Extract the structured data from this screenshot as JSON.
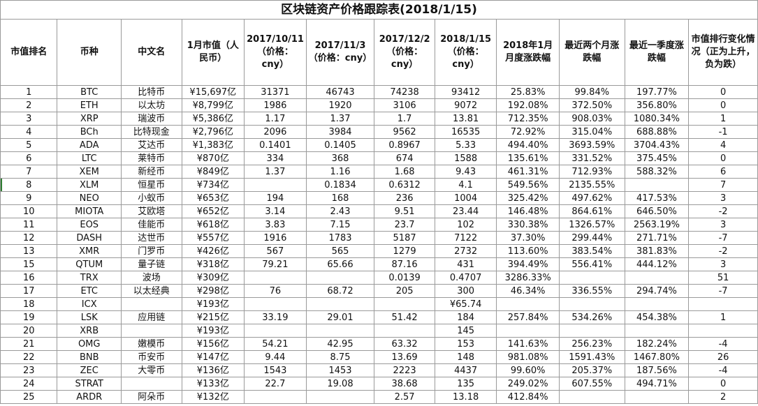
{
  "title": "区块链资产价格跟踪表(2018/1/15)",
  "headers": [
    "市值排名",
    "币种",
    "中文名",
    "1月市值（人民币）",
    "2017/10/11（价格：cny）",
    "2017/11/3（价格：cny）",
    "2017/12/2（价格：cny）",
    "2018/1/15（价格：cny）",
    "2018年1月月度涨跌幅",
    "最近两个月涨跌幅",
    "最近一季度涨跌幅",
    "市值排行变化情况（正为上升，负为跌）"
  ],
  "rows": [
    [
      "1",
      "BTC",
      "比特币",
      "¥15,697亿",
      "31371",
      "46743",
      "74238",
      "93412",
      "25.83%",
      "99.84%",
      "197.77%",
      "0"
    ],
    [
      "2",
      "ETH",
      "以太坊",
      "¥8,799亿",
      "1986",
      "1920",
      "3106",
      "9072",
      "192.08%",
      "372.50%",
      "356.80%",
      "0"
    ],
    [
      "3",
      "XRP",
      "瑞波币",
      "¥5,386亿",
      "1.17",
      "1.37",
      "1.7",
      "13.81",
      "712.35%",
      "908.03%",
      "1080.34%",
      "1"
    ],
    [
      "4",
      "BCh",
      "比特现金",
      "¥2,796亿",
      "2096",
      "3984",
      "9562",
      "16535",
      "72.92%",
      "315.04%",
      "688.88%",
      "-1"
    ],
    [
      "5",
      "ADA",
      "艾达币",
      "¥1,383亿",
      "0.1401",
      "0.1405",
      "0.8967",
      "5.33",
      "494.40%",
      "3693.59%",
      "3704.43%",
      "4"
    ],
    [
      "6",
      "LTC",
      "莱特币",
      "¥870亿",
      "334",
      "368",
      "674",
      "1588",
      "135.61%",
      "331.52%",
      "375.45%",
      "0"
    ],
    [
      "7",
      "XEM",
      "新经币",
      "¥849亿",
      "1.37",
      "1.16",
      "1.68",
      "9.43",
      "461.31%",
      "712.93%",
      "588.32%",
      "6"
    ],
    [
      "8",
      "XLM",
      "恒星币",
      "¥734亿",
      "",
      "0.1834",
      "0.6312",
      "4.1",
      "549.56%",
      "2135.55%",
      "",
      "7"
    ],
    [
      "9",
      "NEO",
      "小蚁币",
      "¥653亿",
      "194",
      "168",
      "236",
      "1004",
      "325.42%",
      "497.62%",
      "417.53%",
      "3"
    ],
    [
      "10",
      "MIOTA",
      "艾欧塔",
      "¥652亿",
      "3.14",
      "2.43",
      "9.51",
      "23.44",
      "146.48%",
      "864.61%",
      "646.50%",
      "-2"
    ],
    [
      "11",
      "EOS",
      "佳能币",
      "¥618亿",
      "3.83",
      "7.15",
      "23.7",
      "102",
      "330.38%",
      "1326.57%",
      "2563.19%",
      "3"
    ],
    [
      "12",
      "DASH",
      "达世币",
      "¥557亿",
      "1916",
      "1783",
      "5187",
      "7122",
      "37.30%",
      "299.44%",
      "271.71%",
      "-7"
    ],
    [
      "13",
      "XMR",
      "门罗币",
      "¥426亿",
      "567",
      "565",
      "1279",
      "2732",
      "113.60%",
      "383.54%",
      "381.83%",
      "-2"
    ],
    [
      "15",
      "QTUM",
      "量子链",
      "¥318亿",
      "79.21",
      "65.66",
      "87.16",
      "431",
      "394.49%",
      "556.41%",
      "444.12%",
      "3"
    ],
    [
      "16",
      "TRX",
      "波场",
      "¥309亿",
      "",
      "",
      "0.0139",
      "0.4707",
      "3286.33%",
      "",
      "",
      "51"
    ],
    [
      "17",
      "ETC",
      "以太经典",
      "¥298亿",
      "76",
      "68.72",
      "205",
      "300",
      "46.34%",
      "336.55%",
      "294.74%",
      "-7"
    ],
    [
      "18",
      "ICX",
      "",
      "¥193亿",
      "",
      "",
      "",
      "¥65.74",
      "",
      "",
      "",
      ""
    ],
    [
      "19",
      "LSK",
      "应用链",
      "¥215亿",
      "33.19",
      "29.01",
      "51.42",
      "184",
      "257.84%",
      "534.26%",
      "454.38%",
      "1"
    ],
    [
      "20",
      "XRB",
      "",
      "¥193亿",
      "",
      "",
      "",
      "145",
      "",
      "",
      "",
      ""
    ],
    [
      "21",
      "OMG",
      "嫩模币",
      "¥156亿",
      "54.21",
      "42.95",
      "63.32",
      "153",
      "141.63%",
      "256.23%",
      "182.24%",
      "-4"
    ],
    [
      "22",
      "BNB",
      "币安币",
      "¥147亿",
      "9.44",
      "8.75",
      "13.69",
      "148",
      "981.08%",
      "1591.43%",
      "1467.80%",
      "26"
    ],
    [
      "23",
      "ZEC",
      "大零币",
      "¥136亿",
      "1543",
      "1453",
      "2223",
      "4437",
      "99.60%",
      "205.37%",
      "187.56%",
      "-4"
    ],
    [
      "24",
      "STRAT",
      "",
      "¥133亿",
      "22.7",
      "19.08",
      "38.68",
      "135",
      "249.02%",
      "607.55%",
      "494.71%",
      "0"
    ],
    [
      "25",
      "ARDR",
      "阿朵币",
      "¥132亿",
      "",
      "",
      "2.57",
      "13.18",
      "412.84%",
      "",
      "",
      " 2"
    ]
  ]
}
